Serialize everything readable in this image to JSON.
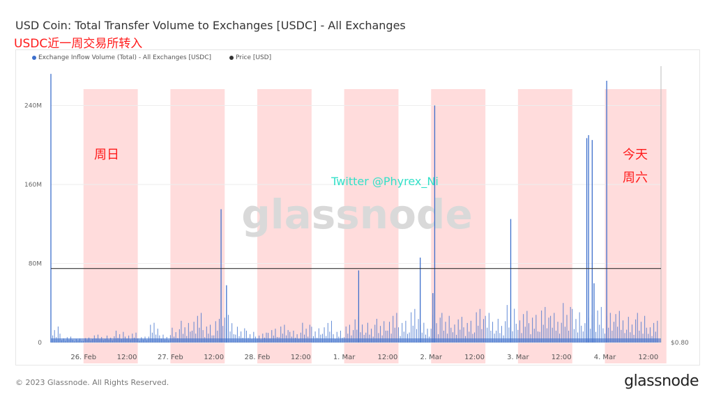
{
  "header": {
    "title": "USD Coin: Total Transfer Volume to Exchanges [USDC] - All Exchanges",
    "subtitle": "USDC近一周交易所转入"
  },
  "footer": {
    "copyright": "© 2023 Glassnode. All Rights Reserved.",
    "logo": "glassnode"
  },
  "watermark": {
    "brand": "glassnode",
    "twitter": "Twitter @Phyrex_Ni"
  },
  "annotations": {
    "sunday": "周日",
    "today": "今天",
    "saturday": "周六"
  },
  "colors": {
    "inflow": "#3d6fcc",
    "price": "#333333",
    "highlight": "#ffdcdc",
    "annotation": "#ff1a1a",
    "twitter": "#33e0c8"
  },
  "chart_data": {
    "type": "bar",
    "legend": [
      {
        "name": "Exchange Inflow Volume (Total) - All Exchanges [USDC]",
        "color": "#3d6fcc"
      },
      {
        "name": "Price [USD]",
        "color": "#333333"
      }
    ],
    "legend_placement": "top-left",
    "x_range": [
      "2023-02-25T15:00",
      "2023-03-04T15:30"
    ],
    "x_ticks": [
      "26. Feb",
      "12:00",
      "27. Feb",
      "12:00",
      "28. Feb",
      "12:00",
      "1. Mar",
      "12:00",
      "2. Mar",
      "12:00",
      "3. Mar",
      "12:00",
      "4. Mar",
      "12:00"
    ],
    "y_ticks": [
      "0",
      "80M",
      "160M",
      "240M"
    ],
    "y_range": [
      0,
      280000000
    ],
    "y2_ticks": [
      "$0.80"
    ],
    "y2_range": [
      0.8,
      1.3
    ],
    "grid": "horizontal",
    "highlight_bands": [
      [
        "2023-02-26T00:00",
        "2023-02-26T15:00"
      ],
      [
        "2023-02-27T00:00",
        "2023-02-27T15:00"
      ],
      [
        "2023-02-28T00:00",
        "2023-02-28T15:00"
      ],
      [
        "2023-03-01T00:00",
        "2023-03-01T15:00"
      ],
      [
        "2023-03-02T00:00",
        "2023-03-02T15:00"
      ],
      [
        "2023-03-03T00:00",
        "2023-03-03T15:00"
      ],
      [
        "2023-03-04T00:00",
        "2023-03-04T17:00"
      ]
    ],
    "inflow_start": "2023-02-25T15:00",
    "inflow_step_hours": 3,
    "inflow_values_M": [
      18,
      6,
      4,
      5,
      8,
      7,
      12,
      10,
      6,
      20,
      8,
      15,
      22,
      30,
      18,
      24,
      28,
      16,
      12,
      10,
      14,
      18,
      12,
      20,
      16,
      22,
      12,
      18,
      26,
      20,
      24,
      30,
      22,
      34,
      20,
      28,
      30,
      26,
      22,
      34,
      30,
      24,
      38,
      32,
      28,
      36,
      30,
      40,
      34,
      28,
      36,
      30,
      32,
      26,
      30,
      22
    ],
    "inflow_spikes": [
      {
        "t": "2023-02-25T15:00",
        "v": 272
      },
      {
        "t": "2023-02-27T14:00",
        "v": 135
      },
      {
        "t": "2023-02-27T15:30",
        "v": 58
      },
      {
        "t": "2023-03-01T04:00",
        "v": 73
      },
      {
        "t": "2023-03-01T21:00",
        "v": 86
      },
      {
        "t": "2023-03-02T00:30",
        "v": 50
      },
      {
        "t": "2023-03-02T01:00",
        "v": 240
      },
      {
        "t": "2023-03-02T22:00",
        "v": 125
      },
      {
        "t": "2023-03-03T19:00",
        "v": 207
      },
      {
        "t": "2023-03-03T19:30",
        "v": 210
      },
      {
        "t": "2023-03-03T20:30",
        "v": 205
      },
      {
        "t": "2023-03-03T21:00",
        "v": 60
      },
      {
        "t": "2023-03-04T00:30",
        "v": 265
      }
    ],
    "price_value": 1.0
  }
}
